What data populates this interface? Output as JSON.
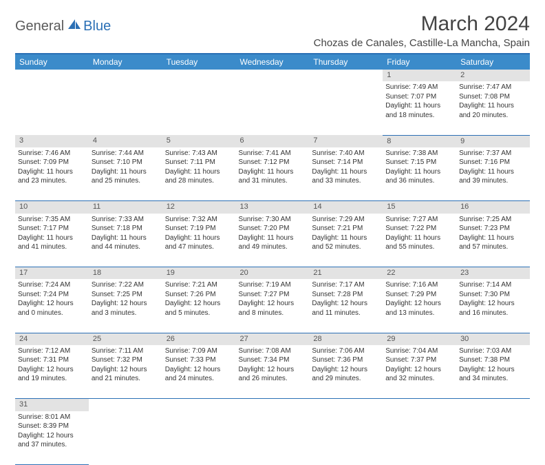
{
  "logo": {
    "part1": "General",
    "part2": "Blue"
  },
  "title": "March 2024",
  "location": "Chozas de Canales, Castille-La Mancha, Spain",
  "colors": {
    "header_bg": "#3b8bca",
    "header_border": "#2a6fb5",
    "daynum_bg": "#e3e3e3",
    "text": "#333333",
    "logo_gray": "#5a5a5a",
    "logo_blue": "#2a6fb5"
  },
  "weekdays": [
    "Sunday",
    "Monday",
    "Tuesday",
    "Wednesday",
    "Thursday",
    "Friday",
    "Saturday"
  ],
  "weeks": [
    [
      null,
      null,
      null,
      null,
      null,
      {
        "n": "1",
        "sr": "Sunrise: 7:49 AM",
        "ss": "Sunset: 7:07 PM",
        "d1": "Daylight: 11 hours",
        "d2": "and 18 minutes."
      },
      {
        "n": "2",
        "sr": "Sunrise: 7:47 AM",
        "ss": "Sunset: 7:08 PM",
        "d1": "Daylight: 11 hours",
        "d2": "and 20 minutes."
      }
    ],
    [
      {
        "n": "3",
        "sr": "Sunrise: 7:46 AM",
        "ss": "Sunset: 7:09 PM",
        "d1": "Daylight: 11 hours",
        "d2": "and 23 minutes."
      },
      {
        "n": "4",
        "sr": "Sunrise: 7:44 AM",
        "ss": "Sunset: 7:10 PM",
        "d1": "Daylight: 11 hours",
        "d2": "and 25 minutes."
      },
      {
        "n": "5",
        "sr": "Sunrise: 7:43 AM",
        "ss": "Sunset: 7:11 PM",
        "d1": "Daylight: 11 hours",
        "d2": "and 28 minutes."
      },
      {
        "n": "6",
        "sr": "Sunrise: 7:41 AM",
        "ss": "Sunset: 7:12 PM",
        "d1": "Daylight: 11 hours",
        "d2": "and 31 minutes."
      },
      {
        "n": "7",
        "sr": "Sunrise: 7:40 AM",
        "ss": "Sunset: 7:14 PM",
        "d1": "Daylight: 11 hours",
        "d2": "and 33 minutes."
      },
      {
        "n": "8",
        "sr": "Sunrise: 7:38 AM",
        "ss": "Sunset: 7:15 PM",
        "d1": "Daylight: 11 hours",
        "d2": "and 36 minutes."
      },
      {
        "n": "9",
        "sr": "Sunrise: 7:37 AM",
        "ss": "Sunset: 7:16 PM",
        "d1": "Daylight: 11 hours",
        "d2": "and 39 minutes."
      }
    ],
    [
      {
        "n": "10",
        "sr": "Sunrise: 7:35 AM",
        "ss": "Sunset: 7:17 PM",
        "d1": "Daylight: 11 hours",
        "d2": "and 41 minutes."
      },
      {
        "n": "11",
        "sr": "Sunrise: 7:33 AM",
        "ss": "Sunset: 7:18 PM",
        "d1": "Daylight: 11 hours",
        "d2": "and 44 minutes."
      },
      {
        "n": "12",
        "sr": "Sunrise: 7:32 AM",
        "ss": "Sunset: 7:19 PM",
        "d1": "Daylight: 11 hours",
        "d2": "and 47 minutes."
      },
      {
        "n": "13",
        "sr": "Sunrise: 7:30 AM",
        "ss": "Sunset: 7:20 PM",
        "d1": "Daylight: 11 hours",
        "d2": "and 49 minutes."
      },
      {
        "n": "14",
        "sr": "Sunrise: 7:29 AM",
        "ss": "Sunset: 7:21 PM",
        "d1": "Daylight: 11 hours",
        "d2": "and 52 minutes."
      },
      {
        "n": "15",
        "sr": "Sunrise: 7:27 AM",
        "ss": "Sunset: 7:22 PM",
        "d1": "Daylight: 11 hours",
        "d2": "and 55 minutes."
      },
      {
        "n": "16",
        "sr": "Sunrise: 7:25 AM",
        "ss": "Sunset: 7:23 PM",
        "d1": "Daylight: 11 hours",
        "d2": "and 57 minutes."
      }
    ],
    [
      {
        "n": "17",
        "sr": "Sunrise: 7:24 AM",
        "ss": "Sunset: 7:24 PM",
        "d1": "Daylight: 12 hours",
        "d2": "and 0 minutes."
      },
      {
        "n": "18",
        "sr": "Sunrise: 7:22 AM",
        "ss": "Sunset: 7:25 PM",
        "d1": "Daylight: 12 hours",
        "d2": "and 3 minutes."
      },
      {
        "n": "19",
        "sr": "Sunrise: 7:21 AM",
        "ss": "Sunset: 7:26 PM",
        "d1": "Daylight: 12 hours",
        "d2": "and 5 minutes."
      },
      {
        "n": "20",
        "sr": "Sunrise: 7:19 AM",
        "ss": "Sunset: 7:27 PM",
        "d1": "Daylight: 12 hours",
        "d2": "and 8 minutes."
      },
      {
        "n": "21",
        "sr": "Sunrise: 7:17 AM",
        "ss": "Sunset: 7:28 PM",
        "d1": "Daylight: 12 hours",
        "d2": "and 11 minutes."
      },
      {
        "n": "22",
        "sr": "Sunrise: 7:16 AM",
        "ss": "Sunset: 7:29 PM",
        "d1": "Daylight: 12 hours",
        "d2": "and 13 minutes."
      },
      {
        "n": "23",
        "sr": "Sunrise: 7:14 AM",
        "ss": "Sunset: 7:30 PM",
        "d1": "Daylight: 12 hours",
        "d2": "and 16 minutes."
      }
    ],
    [
      {
        "n": "24",
        "sr": "Sunrise: 7:12 AM",
        "ss": "Sunset: 7:31 PM",
        "d1": "Daylight: 12 hours",
        "d2": "and 19 minutes."
      },
      {
        "n": "25",
        "sr": "Sunrise: 7:11 AM",
        "ss": "Sunset: 7:32 PM",
        "d1": "Daylight: 12 hours",
        "d2": "and 21 minutes."
      },
      {
        "n": "26",
        "sr": "Sunrise: 7:09 AM",
        "ss": "Sunset: 7:33 PM",
        "d1": "Daylight: 12 hours",
        "d2": "and 24 minutes."
      },
      {
        "n": "27",
        "sr": "Sunrise: 7:08 AM",
        "ss": "Sunset: 7:34 PM",
        "d1": "Daylight: 12 hours",
        "d2": "and 26 minutes."
      },
      {
        "n": "28",
        "sr": "Sunrise: 7:06 AM",
        "ss": "Sunset: 7:36 PM",
        "d1": "Daylight: 12 hours",
        "d2": "and 29 minutes."
      },
      {
        "n": "29",
        "sr": "Sunrise: 7:04 AM",
        "ss": "Sunset: 7:37 PM",
        "d1": "Daylight: 12 hours",
        "d2": "and 32 minutes."
      },
      {
        "n": "30",
        "sr": "Sunrise: 7:03 AM",
        "ss": "Sunset: 7:38 PM",
        "d1": "Daylight: 12 hours",
        "d2": "and 34 minutes."
      }
    ],
    [
      {
        "n": "31",
        "sr": "Sunrise: 8:01 AM",
        "ss": "Sunset: 8:39 PM",
        "d1": "Daylight: 12 hours",
        "d2": "and 37 minutes."
      },
      null,
      null,
      null,
      null,
      null,
      null
    ]
  ]
}
